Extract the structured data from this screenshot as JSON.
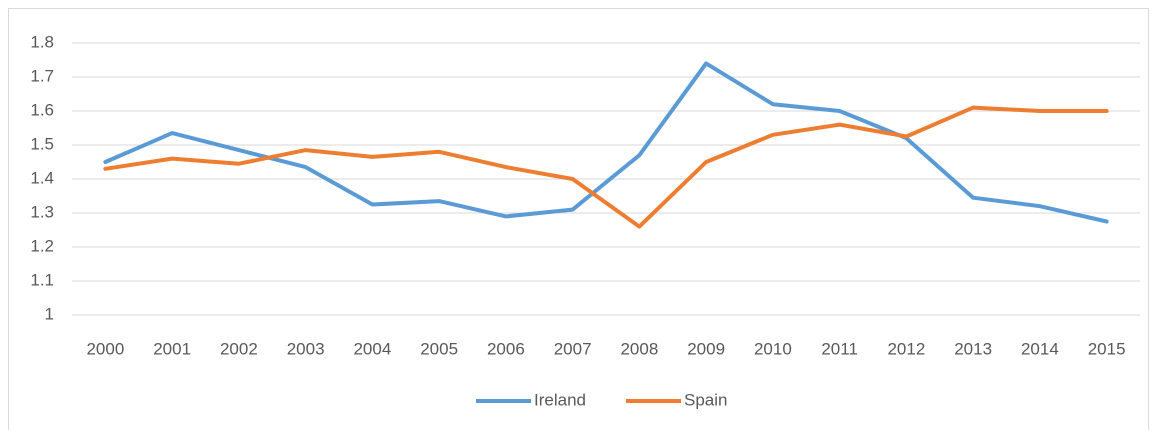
{
  "chart_data": {
    "type": "line",
    "categories": [
      "2000",
      "2001",
      "2002",
      "2003",
      "2004",
      "2005",
      "2006",
      "2007",
      "2008",
      "2009",
      "2010",
      "2011",
      "2012",
      "2013",
      "2014",
      "2015"
    ],
    "series": [
      {
        "name": "Ireland",
        "color": "#5b9bd5",
        "values": [
          1.45,
          1.535,
          1.485,
          1.435,
          1.325,
          1.335,
          1.29,
          1.31,
          1.47,
          1.74,
          1.62,
          1.6,
          1.52,
          1.345,
          1.32,
          1.275
        ]
      },
      {
        "name": "Spain",
        "color": "#ed7d31",
        "values": [
          1.43,
          1.46,
          1.445,
          1.485,
          1.465,
          1.48,
          1.435,
          1.4,
          1.26,
          1.45,
          1.53,
          1.56,
          1.525,
          1.61,
          1.6,
          1.6
        ]
      }
    ],
    "ylim": [
      1,
      1.8
    ],
    "yticks": [
      1,
      1.1,
      1.2,
      1.3,
      1.4,
      1.5,
      1.6,
      1.7,
      1.8
    ],
    "grid": true,
    "legend": "bottom"
  }
}
